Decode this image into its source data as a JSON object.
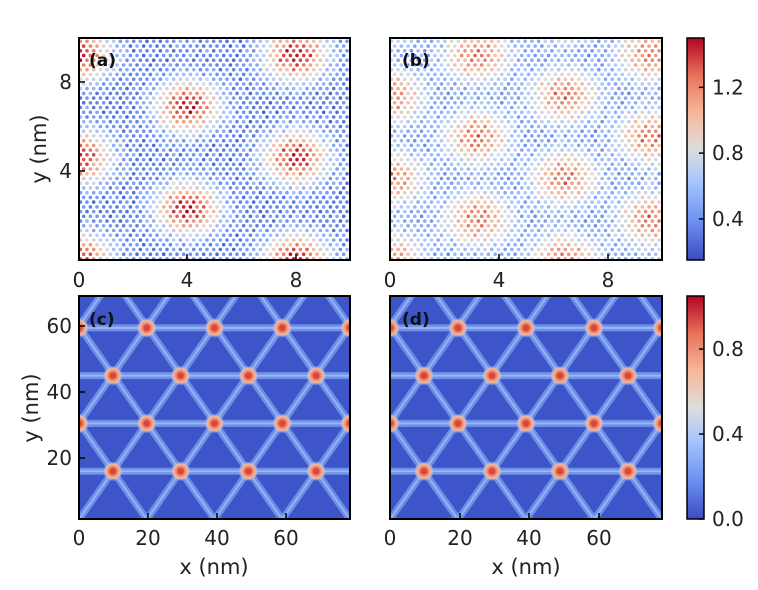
{
  "colors": {
    "colormap": [
      "#3b4cc0",
      "#6f92f3",
      "#aac7fd",
      "#dddddd",
      "#f7b89c",
      "#e7745b",
      "#b40426"
    ],
    "mesh_lines": "#7fa6f6",
    "node_peak": "#d9463a",
    "frame": "#000000"
  },
  "chart_data": [
    {
      "type": "heatmap",
      "panel_label": "(a)",
      "xlabel": "",
      "ylabel": "y (nm)",
      "xlim": [
        0,
        10
      ],
      "ylim": [
        0,
        10
      ],
      "xticks": [
        "0",
        "4",
        "8"
      ],
      "yticks": [
        "4",
        "8"
      ],
      "description": "site-resolved values on a hexagonal lattice forming a moire superlattice with larger peak domains",
      "value_range": [
        0.2,
        1.5
      ],
      "moire_period_nm": 4.0
    },
    {
      "type": "heatmap",
      "panel_label": "(b)",
      "xlabel": "",
      "ylabel": "",
      "xlim": [
        0,
        10
      ],
      "ylim": [
        0,
        10
      ],
      "xticks": [
        "0",
        "4",
        "8"
      ],
      "yticks": [],
      "description": "site-resolved values on a hexagonal lattice forming a moire superlattice with smoother contrast",
      "value_range": [
        0.2,
        1.5
      ],
      "moire_period_nm": 3.2
    },
    {
      "type": "heatmap",
      "panel_label": "(c)",
      "xlabel": "x (nm)",
      "ylabel": "y (nm)",
      "xlim": [
        0,
        70
      ],
      "ylim": [
        0,
        70
      ],
      "xticks": [
        "0",
        "20",
        "40",
        "60"
      ],
      "yticks": [
        "20",
        "40",
        "60"
      ],
      "description": "triangular network of domain-wall lines with bright nodes",
      "value_range": [
        0.0,
        1.05
      ],
      "node_spacing_nm": 17.5,
      "node_rows_y": [
        15,
        30,
        45,
        60
      ],
      "node_row_offset_x": [
        8.75,
        0,
        8.75,
        0
      ]
    },
    {
      "type": "heatmap",
      "panel_label": "(d)",
      "xlabel": "x (nm)",
      "ylabel": "",
      "xlim": [
        0,
        70
      ],
      "ylim": [
        0,
        70
      ],
      "xticks": [
        "0",
        "20",
        "40",
        "60"
      ],
      "yticks": [],
      "description": "triangular network of domain-wall lines with bright nodes",
      "value_range": [
        0.0,
        1.05
      ],
      "node_spacing_nm": 17.5,
      "node_rows_y": [
        15,
        30,
        45,
        60
      ],
      "node_row_offset_x": [
        8.75,
        0,
        8.75,
        0
      ]
    }
  ],
  "colorbars": [
    {
      "range": [
        0.15,
        1.5
      ],
      "ticks": [
        "0.4",
        "0.8",
        "1.2"
      ],
      "tick_values": [
        0.4,
        0.8,
        1.2
      ]
    },
    {
      "range": [
        0.0,
        1.05
      ],
      "ticks": [
        "0.0",
        "0.4",
        "0.8"
      ],
      "tick_values": [
        0.0,
        0.4,
        0.8
      ]
    }
  ]
}
